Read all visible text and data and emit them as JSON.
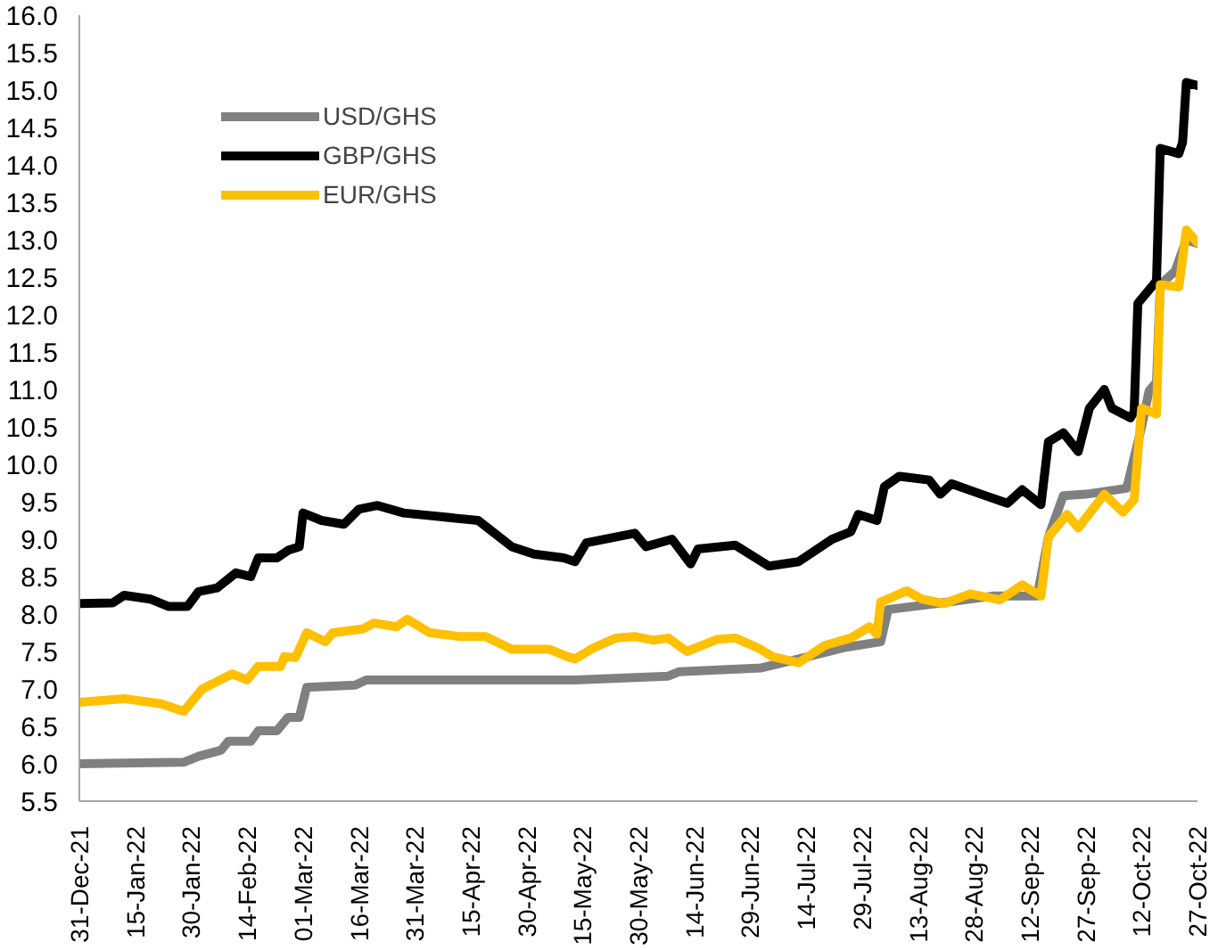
{
  "chart_data": {
    "type": "line",
    "legend": "top left",
    "grid": false,
    "line_style": "solid",
    "marker": "none",
    "xlim": [
      "2021-12-31",
      "2022-10-27"
    ],
    "ylim": [
      5.5,
      16.0
    ],
    "xticks": [
      {
        "value": "2021-12-31",
        "label": "31-Dec-21"
      },
      {
        "value": "2022-01-15",
        "label": "15-Jan-22"
      },
      {
        "value": "2022-01-30",
        "label": "30-Jan-22"
      },
      {
        "value": "2022-02-14",
        "label": "14-Feb-22"
      },
      {
        "value": "2022-03-01",
        "label": "01-Mar-22"
      },
      {
        "value": "2022-03-16",
        "label": "16-Mar-22"
      },
      {
        "value": "2022-03-31",
        "label": "31-Mar-22"
      },
      {
        "value": "2022-04-15",
        "label": "15-Apr-22"
      },
      {
        "value": "2022-04-30",
        "label": "30-Apr-22"
      },
      {
        "value": "2022-05-15",
        "label": "15-May-22"
      },
      {
        "value": "2022-05-30",
        "label": "30-May-22"
      },
      {
        "value": "2022-06-14",
        "label": "14-Jun-22"
      },
      {
        "value": "2022-06-29",
        "label": "29-Jun-22"
      },
      {
        "value": "2022-07-14",
        "label": "14-Jul-22"
      },
      {
        "value": "2022-07-29",
        "label": "29-Jul-22"
      },
      {
        "value": "2022-08-13",
        "label": "13-Aug-22"
      },
      {
        "value": "2022-08-28",
        "label": "28-Aug-22"
      },
      {
        "value": "2022-09-12",
        "label": "12-Sep-22"
      },
      {
        "value": "2022-09-27",
        "label": "27-Sep-22"
      },
      {
        "value": "2022-10-12",
        "label": "12-Oct-22"
      },
      {
        "value": "2022-10-27",
        "label": "27-Oct-22"
      }
    ],
    "yticks": [
      {
        "value": 5.5,
        "label": "5.5"
      },
      {
        "value": 6.0,
        "label": "6.0"
      },
      {
        "value": 6.5,
        "label": "6.5"
      },
      {
        "value": 7.0,
        "label": "7.0"
      },
      {
        "value": 7.5,
        "label": "7.5"
      },
      {
        "value": 8.0,
        "label": "8.0"
      },
      {
        "value": 8.5,
        "label": "8.5"
      },
      {
        "value": 9.0,
        "label": "9.0"
      },
      {
        "value": 9.5,
        "label": "9.5"
      },
      {
        "value": 10.0,
        "label": "10.0"
      },
      {
        "value": 10.5,
        "label": "10.5"
      },
      {
        "value": 11.0,
        "label": "11.0"
      },
      {
        "value": 11.5,
        "label": "11.5"
      },
      {
        "value": 12.0,
        "label": "12.0"
      },
      {
        "value": 12.5,
        "label": "12.5"
      },
      {
        "value": 13.0,
        "label": "13.0"
      },
      {
        "value": 13.5,
        "label": "13.5"
      },
      {
        "value": 14.0,
        "label": "14.0"
      },
      {
        "value": 14.5,
        "label": "14.5"
      },
      {
        "value": 15.0,
        "label": "15.0"
      },
      {
        "value": 15.5,
        "label": "15.5"
      },
      {
        "value": 16.0,
        "label": "16.0"
      }
    ],
    "series": [
      {
        "name": "USD/GHS",
        "color": "#808080",
        "x": [
          "2021-12-31",
          "2022-01-28",
          "2022-02-01",
          "2022-02-07",
          "2022-02-09",
          "2022-02-15",
          "2022-02-17",
          "2022-02-22",
          "2022-02-25",
          "2022-02-28",
          "2022-03-02",
          "2022-03-15",
          "2022-03-18",
          "2022-05-13",
          "2022-06-07",
          "2022-06-10",
          "2022-07-02",
          "2022-07-12",
          "2022-07-24",
          "2022-08-03",
          "2022-08-05",
          "2022-08-18",
          "2022-09-02",
          "2022-09-14",
          "2022-09-17",
          "2022-09-21",
          "2022-09-27",
          "2022-10-08",
          "2022-10-12",
          "2022-10-14",
          "2022-10-16",
          "2022-10-17",
          "2022-10-21",
          "2022-10-24",
          "2022-10-27"
        ],
        "values": [
          6.0,
          6.02,
          6.1,
          6.18,
          6.3,
          6.3,
          6.44,
          6.44,
          6.62,
          6.62,
          7.02,
          7.05,
          7.12,
          7.12,
          7.17,
          7.23,
          7.28,
          7.4,
          7.55,
          7.63,
          8.06,
          8.14,
          8.24,
          8.24,
          9.03,
          9.58,
          9.6,
          9.68,
          10.5,
          10.98,
          11.1,
          12.4,
          12.58,
          13.0,
          12.95
        ]
      },
      {
        "name": "GBP/GHS",
        "color": "#000000",
        "x": [
          "2021-12-31",
          "2022-01-09",
          "2022-01-12",
          "2022-01-19",
          "2022-01-24",
          "2022-01-29",
          "2022-02-01",
          "2022-02-06",
          "2022-02-11",
          "2022-02-15",
          "2022-02-17",
          "2022-02-22",
          "2022-02-25",
          "2022-02-28",
          "2022-03-01",
          "2022-03-06",
          "2022-03-12",
          "2022-03-16",
          "2022-03-21",
          "2022-03-28",
          "2022-04-07",
          "2022-04-17",
          "2022-04-26",
          "2022-05-02",
          "2022-05-10",
          "2022-05-13",
          "2022-05-16",
          "2022-05-29",
          "2022-06-01",
          "2022-06-08",
          "2022-06-13",
          "2022-06-15",
          "2022-06-25",
          "2022-07-04",
          "2022-07-12",
          "2022-07-21",
          "2022-07-26",
          "2022-07-28",
          "2022-08-02",
          "2022-08-04",
          "2022-08-08",
          "2022-08-16",
          "2022-08-19",
          "2022-08-22",
          "2022-08-30",
          "2022-09-06",
          "2022-09-10",
          "2022-09-15",
          "2022-09-17",
          "2022-09-21",
          "2022-09-25",
          "2022-09-28",
          "2022-10-02",
          "2022-10-04",
          "2022-10-09",
          "2022-10-10",
          "2022-10-11",
          "2022-10-16",
          "2022-10-17",
          "2022-10-22",
          "2022-10-23",
          "2022-10-24",
          "2022-10-27"
        ],
        "values": [
          8.14,
          8.15,
          8.25,
          8.2,
          8.1,
          8.1,
          8.3,
          8.35,
          8.55,
          8.5,
          8.75,
          8.75,
          8.85,
          8.9,
          9.35,
          9.25,
          9.2,
          9.4,
          9.45,
          9.35,
          9.3,
          9.25,
          8.9,
          8.8,
          8.75,
          8.7,
          8.95,
          9.08,
          8.9,
          9.0,
          8.67,
          8.87,
          8.92,
          8.64,
          8.7,
          9.0,
          9.1,
          9.33,
          9.25,
          9.7,
          9.84,
          9.79,
          9.6,
          9.74,
          9.6,
          9.48,
          9.66,
          9.46,
          10.3,
          10.42,
          10.17,
          10.75,
          11.0,
          10.75,
          10.62,
          10.7,
          12.15,
          12.45,
          14.22,
          14.15,
          14.3,
          15.1,
          15.06
        ]
      },
      {
        "name": "EUR/GHS",
        "color": "#ffc000",
        "x": [
          "2021-12-31",
          "2022-01-12",
          "2022-01-22",
          "2022-01-28",
          "2022-02-02",
          "2022-02-10",
          "2022-02-14",
          "2022-02-17",
          "2022-02-23",
          "2022-02-24",
          "2022-02-27",
          "2022-03-02",
          "2022-03-07",
          "2022-03-09",
          "2022-03-17",
          "2022-03-20",
          "2022-03-26",
          "2022-03-29",
          "2022-04-04",
          "2022-04-12",
          "2022-04-19",
          "2022-04-26",
          "2022-05-06",
          "2022-05-11",
          "2022-05-13",
          "2022-05-18",
          "2022-05-24",
          "2022-05-29",
          "2022-06-03",
          "2022-06-07",
          "2022-06-12",
          "2022-06-20",
          "2022-06-25",
          "2022-07-01",
          "2022-07-05",
          "2022-07-12",
          "2022-07-19",
          "2022-07-26",
          "2022-07-31",
          "2022-08-02",
          "2022-08-03",
          "2022-08-10",
          "2022-08-14",
          "2022-08-20",
          "2022-08-27",
          "2022-09-04",
          "2022-09-10",
          "2022-09-15",
          "2022-09-17",
          "2022-09-22",
          "2022-09-25",
          "2022-10-02",
          "2022-10-07",
          "2022-10-10",
          "2022-10-12",
          "2022-10-16",
          "2022-10-17",
          "2022-10-22",
          "2022-10-24",
          "2022-10-27"
        ],
        "values": [
          6.82,
          6.87,
          6.8,
          6.7,
          7.0,
          7.2,
          7.12,
          7.3,
          7.3,
          7.43,
          7.42,
          7.75,
          7.63,
          7.75,
          7.8,
          7.88,
          7.83,
          7.93,
          7.75,
          7.7,
          7.7,
          7.53,
          7.53,
          7.43,
          7.4,
          7.55,
          7.68,
          7.7,
          7.65,
          7.68,
          7.5,
          7.66,
          7.68,
          7.55,
          7.43,
          7.35,
          7.58,
          7.68,
          7.83,
          7.73,
          8.16,
          8.31,
          8.2,
          8.14,
          8.27,
          8.19,
          8.39,
          8.24,
          9.03,
          9.33,
          9.15,
          9.6,
          9.36,
          9.53,
          10.75,
          10.67,
          12.4,
          12.37,
          13.13,
          12.96
        ]
      }
    ]
  }
}
